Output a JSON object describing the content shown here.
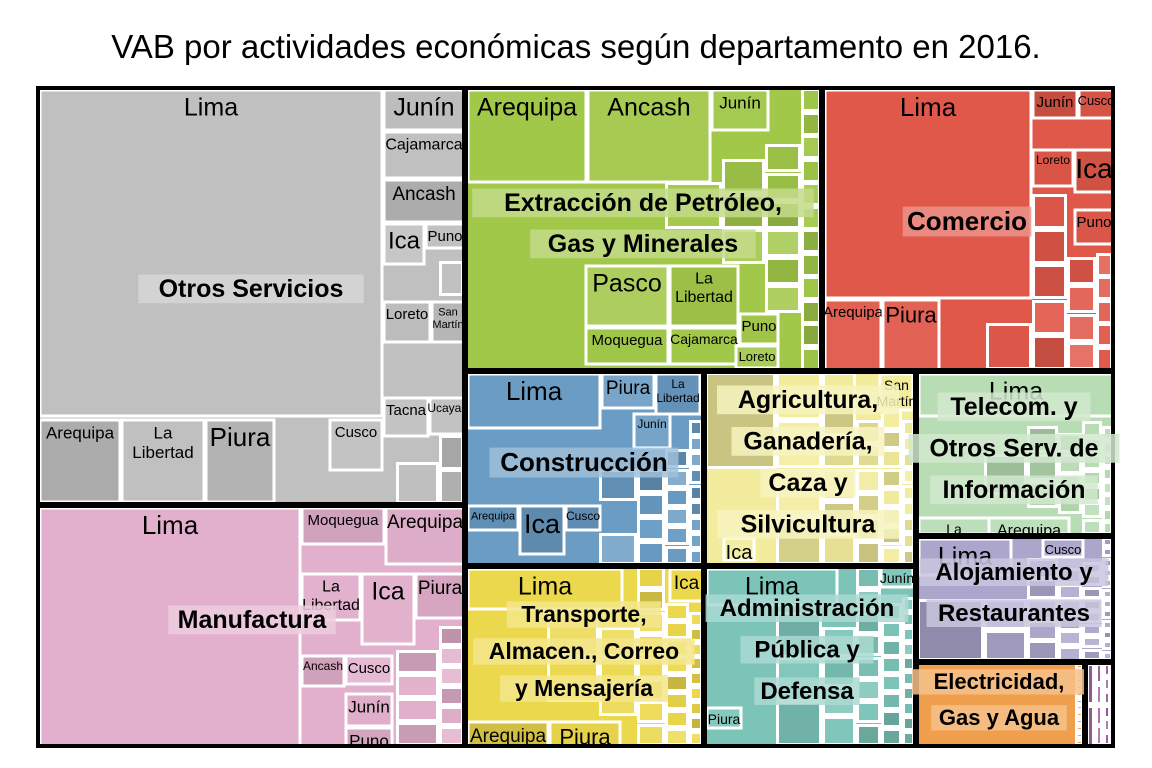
{
  "chart_data": {
    "type": "treemap",
    "title": "VAB por actividades económicas según departamento en 2016.",
    "groups": [
      {
        "name": "Otros Servicios",
        "color": "#c0c0c0",
        "leaves": [
          {
            "name": "Lima"
          },
          {
            "name": "Junín"
          },
          {
            "name": "Cajamarca"
          },
          {
            "name": "Ancash"
          },
          {
            "name": "Ica"
          },
          {
            "name": "Puno"
          },
          {
            "name": "Loreto"
          },
          {
            "name": "San Martín"
          },
          {
            "name": "Tacna"
          },
          {
            "name": "Ucayali"
          },
          {
            "name": "Arequipa"
          },
          {
            "name": "La Libertad"
          },
          {
            "name": "Piura"
          },
          {
            "name": "Cusco"
          }
        ]
      },
      {
        "name": "Manufactura",
        "color": "#e2b0cc",
        "leaves": [
          {
            "name": "Lima"
          },
          {
            "name": "Moquegua"
          },
          {
            "name": "Arequipa"
          },
          {
            "name": "La Libertad"
          },
          {
            "name": "Ica"
          },
          {
            "name": "Piura"
          },
          {
            "name": "Ancash"
          },
          {
            "name": "Cusco"
          },
          {
            "name": "Junín"
          },
          {
            "name": "Puno"
          }
        ]
      },
      {
        "name": "Extracción de Petróleo, Gas y Minerales",
        "color": "#a2c84a",
        "leaves": [
          {
            "name": "Arequipa"
          },
          {
            "name": "Ancash"
          },
          {
            "name": "Junín"
          },
          {
            "name": "Pasco"
          },
          {
            "name": "La Libertad"
          },
          {
            "name": "Moquegua"
          },
          {
            "name": "Cajamarca"
          },
          {
            "name": "Puno"
          },
          {
            "name": "Loreto"
          }
        ]
      },
      {
        "name": "Comercio",
        "color": "#e0584a",
        "leaves": [
          {
            "name": "Lima"
          },
          {
            "name": "Junín"
          },
          {
            "name": "Cusco"
          },
          {
            "name": "Loreto"
          },
          {
            "name": "Ica"
          },
          {
            "name": "Puno"
          },
          {
            "name": "Arequipa"
          },
          {
            "name": "Piura"
          }
        ]
      },
      {
        "name": "Construcción",
        "color": "#6a9cc4",
        "leaves": [
          {
            "name": "Lima"
          },
          {
            "name": "Piura"
          },
          {
            "name": "La Libertad"
          },
          {
            "name": "Junín"
          },
          {
            "name": "Arequipa"
          },
          {
            "name": "Ica"
          },
          {
            "name": "Cusco"
          }
        ]
      },
      {
        "name": "Agricultura, Ganadería, Caza y Silvicultura",
        "color": "#f2ec9c",
        "leaves": [
          {
            "name": "San Martín"
          },
          {
            "name": "Ica"
          }
        ]
      },
      {
        "name": "Telecom. y Otros Serv. de Información",
        "color": "#b8dcb4",
        "leaves": [
          {
            "name": "Lima"
          },
          {
            "name": "La Libertad"
          },
          {
            "name": "Arequipa"
          }
        ]
      },
      {
        "name": "Transporte, Almacen., Correo y Mensajería",
        "color": "#ecd84c",
        "leaves": [
          {
            "name": "Lima"
          },
          {
            "name": "Ica"
          },
          {
            "name": "Arequipa"
          },
          {
            "name": "Piura"
          }
        ]
      },
      {
        "name": "Administración Pública y Defensa",
        "color": "#7cc4b8",
        "leaves": [
          {
            "name": "Lima"
          },
          {
            "name": "Junín"
          },
          {
            "name": "Piura"
          }
        ]
      },
      {
        "name": "Alojamiento y Restaurantes",
        "color": "#aca6cc",
        "leaves": [
          {
            "name": "Lima"
          },
          {
            "name": "Cusco"
          }
        ]
      },
      {
        "name": "Electricidad, Gas y Agua",
        "color": "#f0a04c",
        "leaves": []
      },
      {
        "name": "",
        "color": "#a468a8",
        "leaves": []
      }
    ]
  }
}
